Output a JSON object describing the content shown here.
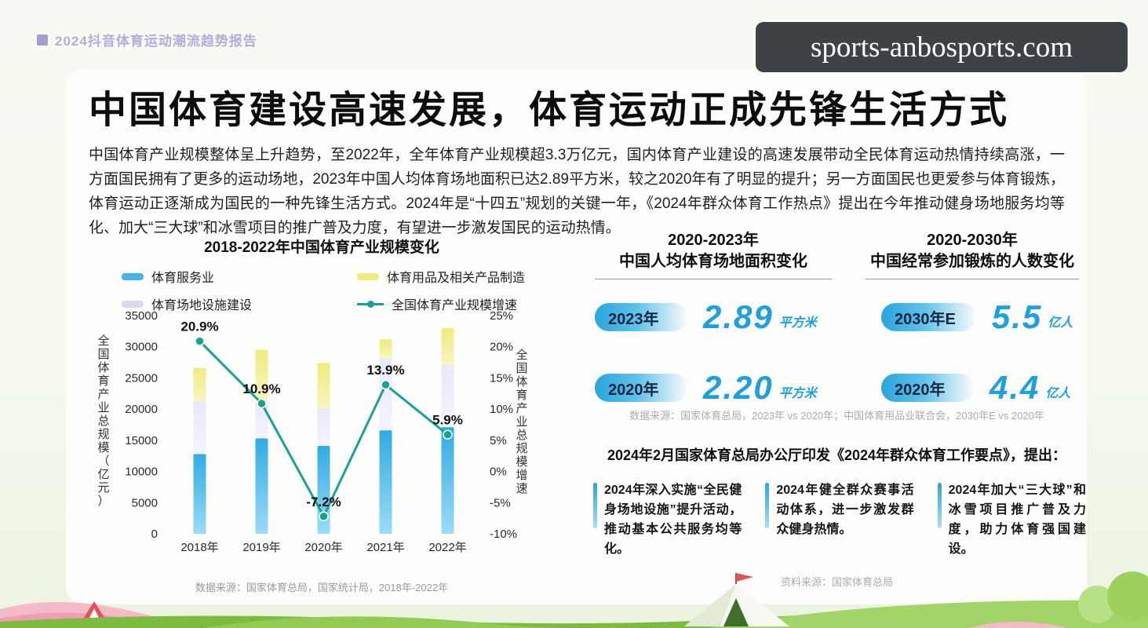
{
  "page": {
    "report_label": "2024抖音体育运动潮流趋势报告",
    "watermark": "sports-anbosports.com",
    "title": "中国体育建设高速发展，体育运动正成先锋生活方式",
    "intro": "中国体育产业规模整体呈上升趋势，至2022年，全年体育产业规模超3.3万亿元，国内体育产业建设的高速发展带动全民体育运动热情持续高涨，一方面国民拥有了更多的运动场地，2023年中国人均体育场地面积已达2.89平方米，较之2020年有了明显的提升；另一方面国民也更爱参与体育锻炼，体育运动正逐渐成为国民的一种先锋生活方式。2024年是“十四五”规划的关键一年，《2024年群众体育工作热点》提出在今年推动健身场地服务均等化、加大“三大球”和冰雪项目的推广普及力度，有望进一步激发国民的运动热情。"
  },
  "chart_data": {
    "type": "bar+line combo (stacked bars, left axis; growth line, right axis)",
    "title": "2018-2022年中国体育产业规模变化",
    "categories": [
      "2018年",
      "2019年",
      "2020年",
      "2021年",
      "2022年"
    ],
    "bar_series": [
      {
        "name": "体育服务业",
        "color": "#45b5ea",
        "values": [
          12800,
          15300,
          14100,
          16600,
          17100
        ]
      },
      {
        "name": "体育场地设施建设",
        "color": "#dcd8f0",
        "values": [
          8500,
          6000,
          6000,
          11500,
          10000
        ]
      },
      {
        "name": "体育用品及相关产品制造",
        "color": "#eeea7d",
        "values": [
          5300,
          8200,
          7300,
          3100,
          5900
        ]
      }
    ],
    "line_series": {
      "name": "全国体育产业规模增速",
      "color": "#17a392",
      "values": [
        20.9,
        10.9,
        -7.2,
        13.9,
        5.9
      ]
    },
    "left_axis": {
      "label": "全国体育产业总规模（亿元）",
      "min": 0,
      "max": 35000,
      "step": 5000
    },
    "right_axis": {
      "label": "全国体育产业总规模增速",
      "min": -10,
      "max": 25,
      "step": 5
    },
    "grid": "off",
    "legend_position": "top",
    "source": "数据来源：国家体育总局，国家统计局，2018年-2022年"
  },
  "area_stat": {
    "title_line1": "2020-2023年",
    "title_line2": "中国人均体育场地面积变化",
    "rows": [
      {
        "year": "2023年",
        "value": "2.89",
        "unit": "平方米"
      },
      {
        "year": "2020年",
        "value": "2.20",
        "unit": "平方米"
      }
    ]
  },
  "exercise_stat": {
    "title_line1": "2020-2030年",
    "title_line2": "中国经常参加锻炼的人数变化",
    "rows": [
      {
        "year": "2030年E",
        "value": "5.5",
        "unit": "亿人"
      },
      {
        "year": "2020年",
        "value": "4.4",
        "unit": "亿人"
      }
    ]
  },
  "stats_source": "数据来源：国家体育总局，2023年 vs 2020年；中国体育用品业联合会，2030年E vs 2020年",
  "policy": {
    "heading": "2024年2月国家体育总局办公厅印发《2024年群众体育工作要点》，提出：",
    "items": [
      "2024年深入实施“全民健身场地设施”提升活动，推动基本公共服务均等化。",
      "2024年健全群众赛事活动体系，进一步激发群众健身热情。",
      "2024年加大“三大球”和冰雪项目推广普及力度，助力体育强国建设。"
    ],
    "source": "资料来源：国家体育总局"
  },
  "colors": {
    "accent_blue": "#1ca0e2",
    "pill_gradient_start": "#2aa4dd",
    "teal_line": "#17a392",
    "bar_blue": "#45b5ea",
    "bar_lavender": "#dcd8f0",
    "bar_yellow": "#eeea7d",
    "header_purple": "#b7aadc",
    "watermark_bg": "#3d4247"
  }
}
